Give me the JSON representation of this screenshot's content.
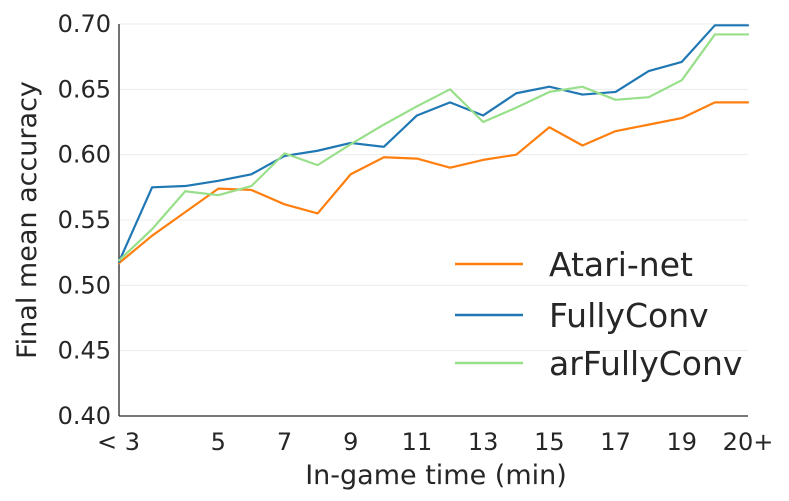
{
  "chart_data": {
    "type": "line",
    "xlabel": "In-game time (min)",
    "ylabel": "Final mean accuracy",
    "x": [
      2,
      3,
      4,
      5,
      6,
      7,
      8,
      9,
      10,
      11,
      12,
      13,
      14,
      15,
      16,
      17,
      18,
      19,
      20,
      21
    ],
    "x_tick_values": [
      3,
      5,
      7,
      9,
      11,
      13,
      15,
      17,
      19,
      21
    ],
    "x_tick_labels": [
      "< 3",
      "5",
      "7",
      "9",
      "11",
      "13",
      "15",
      "17",
      "19",
      "20+"
    ],
    "xlim": [
      2,
      21
    ],
    "ylim": [
      0.4,
      0.7
    ],
    "y_ticks": [
      0.4,
      0.45,
      0.5,
      0.55,
      0.6,
      0.65,
      0.7
    ],
    "y_tick_labels": [
      "0.40",
      "0.45",
      "0.50",
      "0.55",
      "0.60",
      "0.65",
      "0.70"
    ],
    "grid": true,
    "legend_position": "lower-right",
    "series": [
      {
        "name": "Atari-net",
        "color": "#ff7f0e",
        "values": [
          0.517,
          0.538,
          0.556,
          0.574,
          0.573,
          0.562,
          0.555,
          0.585,
          0.598,
          0.597,
          0.59,
          0.596,
          0.6,
          0.621,
          0.607,
          0.618,
          0.623,
          0.628,
          0.64,
          0.64
        ]
      },
      {
        "name": "FullyConv",
        "color": "#1f77b4",
        "values": [
          0.518,
          0.575,
          0.576,
          0.58,
          0.585,
          0.599,
          0.603,
          0.609,
          0.606,
          0.63,
          0.64,
          0.63,
          0.647,
          0.652,
          0.646,
          0.648,
          0.664,
          0.671,
          0.699,
          0.699
        ]
      },
      {
        "name": "arFullyConv",
        "color": "#98df8a",
        "values": [
          0.519,
          0.543,
          0.572,
          0.569,
          0.576,
          0.601,
          0.592,
          0.608,
          0.623,
          0.637,
          0.65,
          0.625,
          0.636,
          0.648,
          0.652,
          0.642,
          0.644,
          0.657,
          0.692,
          0.692
        ]
      }
    ]
  }
}
